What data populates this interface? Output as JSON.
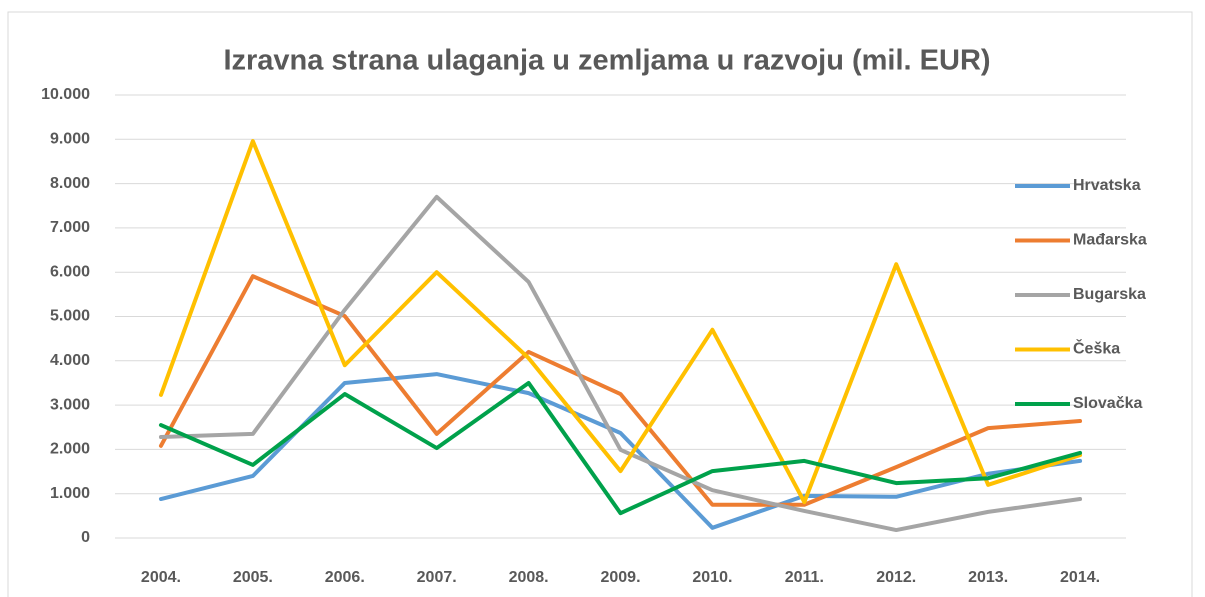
{
  "chart_data": {
    "type": "line",
    "title": "Izravna strana ulaganja u zemljama u razvoju (mil. EUR)",
    "categories": [
      "2004.",
      "2005.",
      "2006.",
      "2007.",
      "2008.",
      "2009.",
      "2010.",
      "2011.",
      "2012.",
      "2013.",
      "2014."
    ],
    "series": [
      {
        "name": "Hrvatska",
        "color": "#5b9bd5",
        "values": [
          880,
          1400,
          3500,
          3700,
          3270,
          2370,
          230,
          950,
          930,
          1450,
          1740
        ]
      },
      {
        "name": "Mađarska",
        "color": "#ed7d31",
        "values": [
          2080,
          5910,
          5010,
          2350,
          4200,
          3250,
          750,
          750,
          1600,
          2480,
          2640
        ]
      },
      {
        "name": "Bugarska",
        "color": "#a5a5a5",
        "values": [
          2280,
          2350,
          5150,
          7700,
          5780,
          1990,
          1080,
          610,
          180,
          590,
          880
        ]
      },
      {
        "name": "Češka",
        "color": "#ffc000",
        "values": [
          3230,
          8960,
          3900,
          6000,
          4060,
          1510,
          4700,
          810,
          6180,
          1200,
          1870
        ]
      },
      {
        "name": "Slovačka",
        "color": "#00a14b",
        "values": [
          2550,
          1650,
          3250,
          2030,
          3500,
          560,
          1510,
          1740,
          1240,
          1350,
          1920
        ]
      }
    ],
    "ylim": [
      0,
      10000
    ],
    "yticks": [
      0,
      {
        "value": 1000,
        "label": "1.000"
      },
      {
        "value": 2000,
        "label": "2.000"
      },
      {
        "value": 3000,
        "label": "3.000"
      },
      {
        "value": 4000,
        "label": "4.000"
      },
      {
        "value": 5000,
        "label": "5.000"
      },
      {
        "value": 6000,
        "label": "6.000"
      },
      {
        "value": 7000,
        "label": "7.000"
      },
      {
        "value": 8000,
        "label": "8.000"
      },
      {
        "value": 9000,
        "label": "9.000"
      },
      {
        "value": 10000,
        "label": "10.000"
      }
    ],
    "grid": true,
    "legend": "right"
  }
}
